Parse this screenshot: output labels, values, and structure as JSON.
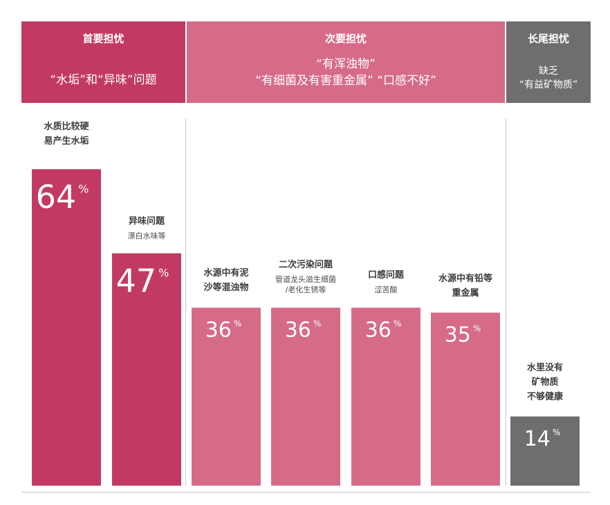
{
  "header": {
    "primary": {
      "title": "首要担忧",
      "body": [
        "“水垢”和“异味”问题"
      ]
    },
    "secondary": {
      "title": "次要担忧",
      "body": [
        "“有浑浊物”",
        "“有细菌及有害重金属” “口感不好”"
      ]
    },
    "tail": {
      "title": "长尾担忧",
      "body": [
        "缺乏",
        "“有益矿物质”"
      ]
    }
  },
  "colors": {
    "primary": "#c23a62",
    "secondary": "#d66b88",
    "tail": "#6e6e71",
    "text": "#3c3c3c"
  },
  "chart_data": {
    "type": "bar",
    "unit": "%",
    "ylim": [
      0,
      64
    ],
    "groups": [
      "首要担忧",
      "次要担忧",
      "长尾担忧"
    ],
    "bars": [
      {
        "label": [
          "水质比较硬",
          "易产生水垢"
        ],
        "sub": [],
        "value": 64,
        "group": "首要担忧"
      },
      {
        "label": [
          "异味问题"
        ],
        "sub": [
          "漂白水味等"
        ],
        "value": 47,
        "group": "首要担忧"
      },
      {
        "label": [
          "水源中有泥",
          "沙等混浊物"
        ],
        "sub": [],
        "value": 36,
        "group": "次要担忧"
      },
      {
        "label": [
          "二次污染问题"
        ],
        "sub": [
          "管道龙头滋生细菌",
          "/老化生锈等"
        ],
        "value": 36,
        "group": "次要担忧"
      },
      {
        "label": [
          "口感问题"
        ],
        "sub": [
          "涩苦酸"
        ],
        "value": 36,
        "group": "次要担忧"
      },
      {
        "label": [
          "水源中有铅等",
          "重金属"
        ],
        "sub": [],
        "value": 35,
        "group": "次要担忧"
      },
      {
        "label": [
          "水里没有",
          "矿物质",
          "不够健康"
        ],
        "sub": [],
        "value": 14,
        "group": "长尾担忧"
      }
    ]
  }
}
